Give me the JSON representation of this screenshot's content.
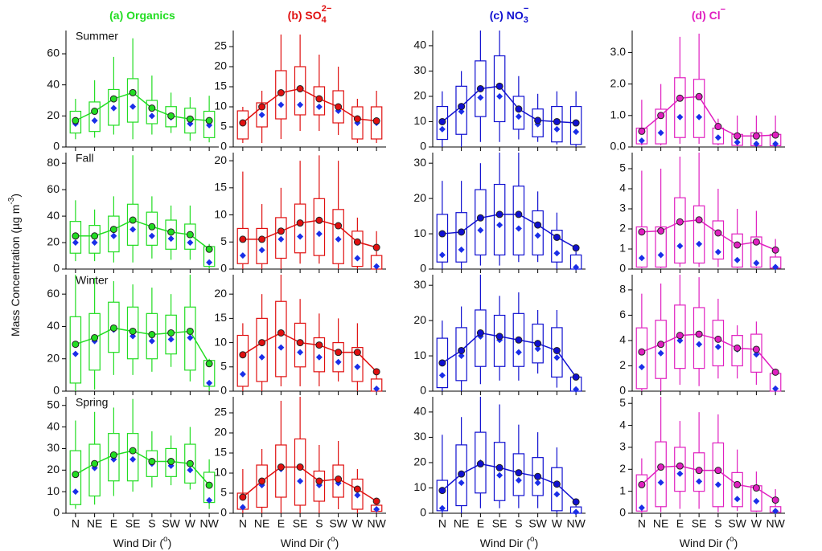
{
  "categories": [
    "N",
    "NE",
    "E",
    "SE",
    "S",
    "SW",
    "W",
    "NW"
  ],
  "x_label": {
    "text": "Wind Dir (",
    "sup": "o",
    "end": ")"
  },
  "y_label": {
    "text": "Mass Concentration (µg m",
    "sup": "-3",
    "end": ")"
  },
  "chart_data": [
    {
      "type": "box",
      "title": {
        "text": "(a) Organics"
      },
      "annotation": "Summer",
      "color": "#22dd22",
      "median_color": "#1a2ee8",
      "ylim": [
        0,
        75
      ],
      "yticks": [
        0,
        20,
        40,
        60
      ],
      "low": [
        5,
        6,
        8,
        5,
        8,
        9,
        4,
        3
      ],
      "q1": [
        9,
        10,
        14,
        16,
        15,
        13,
        9,
        6
      ],
      "median": [
        15,
        17,
        25,
        26,
        20,
        19,
        15,
        14
      ],
      "q3": [
        23,
        29,
        37,
        44,
        30,
        26,
        25,
        23
      ],
      "high": [
        31,
        43,
        58,
        70,
        46,
        35,
        32,
        33
      ],
      "mean": [
        17,
        23,
        31,
        35,
        25,
        20,
        18,
        17
      ]
    },
    {
      "type": "box",
      "title": {
        "text": "(b) SO",
        "sub": "4",
        "sup": "2−"
      },
      "color": "#e01010",
      "median_color": "#1a2ee8",
      "ylim": [
        0,
        29
      ],
      "yticks": [
        0,
        5,
        10,
        15,
        20,
        25
      ],
      "low": [
        1,
        1,
        2,
        4,
        4,
        3,
        1,
        1
      ],
      "q1": [
        2,
        5,
        7,
        8,
        8,
        6,
        2,
        2
      ],
      "median": [
        6,
        8,
        10.5,
        10.5,
        10,
        9,
        6,
        6
      ],
      "q3": [
        9,
        11,
        19,
        20,
        15,
        14,
        10,
        10
      ],
      "high": [
        10,
        14,
        28,
        28,
        23,
        20,
        12,
        14
      ],
      "mean": [
        6,
        10,
        13.5,
        14.5,
        12,
        10,
        7,
        6.5
      ]
    },
    {
      "type": "box",
      "title": {
        "text": "(c) NO",
        "sub": "3",
        "sup": "−"
      },
      "color": "#1010d0",
      "median_color": "#1a2ee8",
      "ylim": [
        0,
        46
      ],
      "yticks": [
        0,
        10,
        20,
        30,
        40
      ],
      "low": [
        0,
        0,
        2,
        2,
        3,
        2,
        1,
        0
      ],
      "q1": [
        3,
        5,
        12,
        10,
        7,
        4,
        2,
        1
      ],
      "median": [
        7,
        14,
        19.5,
        20,
        12,
        9,
        7,
        6
      ],
      "q3": [
        16,
        24,
        34,
        36,
        20,
        15,
        16,
        16
      ],
      "high": [
        22,
        30,
        46,
        46,
        28,
        21,
        22,
        22
      ],
      "mean": [
        10,
        16,
        23,
        24,
        15,
        10.5,
        10,
        9.5
      ]
    },
    {
      "type": "box",
      "title": {
        "text": "(d) Cl",
        "sup": "−"
      },
      "color": "#e020c0",
      "median_color": "#1a2ee8",
      "ylim": [
        0,
        3.7
      ],
      "yticks": [
        {
          "value": 0,
          "label": "0.0"
        },
        {
          "value": 1,
          "label": "1.0"
        },
        {
          "value": 2,
          "label": "2.0"
        },
        {
          "value": 3,
          "label": "3.0"
        }
      ],
      "low": [
        0.05,
        0.05,
        0.1,
        0.1,
        0.05,
        0.02,
        0.02,
        0.02
      ],
      "q1": [
        0.1,
        0.1,
        0.3,
        0.3,
        0.1,
        0.05,
        0.04,
        0.04
      ],
      "median": [
        0.2,
        0.45,
        0.95,
        0.95,
        0.3,
        0.15,
        0.1,
        0.1
      ],
      "q3": [
        0.6,
        1.2,
        2.2,
        2.15,
        0.6,
        0.4,
        0.45,
        0.4
      ],
      "high": [
        1.5,
        2.0,
        3.5,
        3.6,
        0.9,
        1.0,
        1.0,
        1.0
      ],
      "mean": [
        0.5,
        1.0,
        1.55,
        1.6,
        0.65,
        0.35,
        0.35,
        0.38
      ]
    },
    {
      "type": "box",
      "annotation": "Fall",
      "color": "#22dd22",
      "median_color": "#1a2ee8",
      "ylim": [
        0,
        88
      ],
      "yticks": [
        0,
        20,
        40,
        60,
        80
      ],
      "low": [
        6,
        6,
        5,
        5,
        8,
        7,
        7,
        0
      ],
      "q1": [
        12,
        12,
        13,
        18,
        18,
        15,
        15,
        2
      ],
      "median": [
        20,
        20,
        25,
        30,
        25,
        23,
        20,
        5
      ],
      "q3": [
        36,
        33,
        40,
        49,
        43,
        37,
        34,
        17
      ],
      "high": [
        52,
        45,
        55,
        86,
        55,
        48,
        48,
        19
      ],
      "mean": [
        25,
        25,
        30,
        37,
        32,
        28,
        26,
        15
      ]
    },
    {
      "type": "box",
      "color": "#e01010",
      "median_color": "#1a2ee8",
      "ylim": [
        0,
        21.5
      ],
      "yticks": [
        0,
        5,
        10,
        15,
        20
      ],
      "low": [
        0,
        0,
        0,
        1,
        1,
        0,
        0,
        0
      ],
      "q1": [
        1,
        1,
        2,
        3,
        2.5,
        1,
        0.5,
        0
      ],
      "median": [
        2.5,
        3.5,
        5.5,
        6,
        6.5,
        5.5,
        2,
        0.5
      ],
      "q3": [
        7.5,
        7.5,
        9.5,
        12,
        13,
        11,
        7,
        2.5
      ],
      "high": [
        18,
        12,
        15,
        20,
        21,
        20,
        9.5,
        7
      ],
      "mean": [
        5.5,
        5.5,
        7,
        8.5,
        9,
        8,
        5,
        4
      ]
    },
    {
      "type": "box",
      "color": "#1010d0",
      "median_color": "#1a2ee8",
      "ylim": [
        0,
        33
      ],
      "yticks": [
        0,
        10,
        20,
        30
      ],
      "low": [
        0,
        0,
        1,
        1,
        2,
        2,
        0,
        0
      ],
      "q1": [
        2,
        2,
        4,
        4,
        4,
        4,
        2,
        0
      ],
      "median": [
        4,
        5.5,
        11,
        12.5,
        11.5,
        9.5,
        4.5,
        0.5
      ],
      "q3": [
        15.5,
        16,
        22.5,
        24,
        23.5,
        16.5,
        11,
        4
      ],
      "high": [
        25,
        25,
        30,
        33,
        33,
        22,
        16,
        6
      ],
      "mean": [
        10,
        10.5,
        14.5,
        15.5,
        15.5,
        12.5,
        9,
        6
      ]
    },
    {
      "type": "box",
      "color": "#e020c0",
      "median_color": "#1a2ee8",
      "ylim": [
        0,
        5.8
      ],
      "yticks": [
        0,
        1,
        2,
        3,
        4,
        5
      ],
      "low": [
        0.05,
        0.05,
        0.1,
        0.1,
        0.1,
        0.05,
        0.05,
        0.02
      ],
      "q1": [
        0.1,
        0.1,
        0.3,
        0.3,
        0.5,
        0.1,
        0.1,
        0.05
      ],
      "median": [
        0.55,
        0.7,
        1.15,
        1.25,
        0.85,
        0.45,
        0.3,
        0.1
      ],
      "q3": [
        2.1,
        2.1,
        3.55,
        3.15,
        2.4,
        1.75,
        1.6,
        0.6
      ],
      "high": [
        4.9,
        5.0,
        5.6,
        5.8,
        4.0,
        3.0,
        2.9,
        1.5
      ],
      "mean": [
        1.85,
        1.9,
        2.35,
        2.45,
        1.8,
        1.2,
        1.35,
        0.95
      ]
    },
    {
      "type": "box",
      "annotation": "Winter",
      "color": "#22dd22",
      "median_color": "#1a2ee8",
      "ylim": [
        0,
        72
      ],
      "yticks": [
        0,
        20,
        40,
        60
      ],
      "low": [
        0,
        1,
        10,
        10,
        12,
        15,
        6,
        0
      ],
      "q1": [
        5,
        13,
        24,
        20,
        20,
        23,
        13,
        3
      ],
      "median": [
        23,
        31,
        38,
        34,
        31,
        32,
        33,
        5
      ],
      "q3": [
        46,
        48,
        55,
        52,
        48,
        47,
        52,
        19
      ],
      "high": [
        72,
        70,
        68,
        66,
        64,
        60,
        72,
        20
      ],
      "mean": [
        29,
        33,
        39,
        37,
        35,
        36,
        37,
        17
      ]
    },
    {
      "type": "box",
      "color": "#e01010",
      "median_color": "#1a2ee8",
      "ylim": [
        0,
        24
      ],
      "yticks": [
        0,
        5,
        10,
        15,
        20
      ],
      "low": [
        0,
        0,
        1,
        1,
        1,
        2,
        0,
        0
      ],
      "q1": [
        1,
        2,
        3,
        5,
        4,
        4,
        2,
        0
      ],
      "median": [
        3.5,
        7,
        9,
        8,
        7,
        6,
        5,
        0.5
      ],
      "q3": [
        11.5,
        15,
        18.5,
        14,
        11,
        10,
        9,
        2.5
      ],
      "high": [
        14,
        20,
        24,
        19,
        16,
        15,
        14,
        4.5
      ],
      "mean": [
        7.5,
        10,
        12,
        10,
        9.5,
        8,
        8,
        4
      ]
    },
    {
      "type": "box",
      "color": "#1010d0",
      "median_color": "#1a2ee8",
      "ylim": [
        0,
        33
      ],
      "yticks": [
        0,
        10,
        20,
        30
      ],
      "low": [
        0,
        0,
        2,
        3,
        3,
        5,
        1,
        0
      ],
      "q1": [
        1,
        3,
        7,
        7,
        7,
        8,
        4,
        0
      ],
      "median": [
        4.5,
        10,
        15.5,
        14.5,
        11,
        12,
        9.5,
        0.5
      ],
      "q3": [
        15,
        18,
        23,
        21.5,
        22,
        19,
        18,
        4
      ],
      "high": [
        20,
        24,
        33,
        27,
        28,
        23,
        23,
        4.5
      ],
      "mean": [
        8,
        11.5,
        16.5,
        15.5,
        14.5,
        13.5,
        11.5,
        4
      ]
    },
    {
      "type": "box",
      "color": "#e020c0",
      "median_color": "#1a2ee8",
      "ylim": [
        0,
        9.2
      ],
      "yticks": [
        0,
        2,
        4,
        6,
        8
      ],
      "low": [
        0,
        0,
        0.5,
        0.4,
        1,
        1,
        0.5,
        0
      ],
      "q1": [
        0.2,
        1,
        1.8,
        1.8,
        2,
        2,
        1.5,
        0
      ],
      "median": [
        1.9,
        3,
        4,
        3.7,
        3.5,
        3.3,
        2.9,
        0.2
      ],
      "q3": [
        5,
        5.6,
        6.8,
        6.6,
        5.6,
        4.4,
        4.5,
        1.4
      ],
      "high": [
        7.7,
        8.5,
        9.2,
        9,
        7.3,
        5.2,
        5.5,
        1.6
      ],
      "mean": [
        3.1,
        3.7,
        4.4,
        4.5,
        4.1,
        3.4,
        3.3,
        1.5
      ]
    },
    {
      "type": "box",
      "annotation": "Spring",
      "color": "#22dd22",
      "median_color": "#1a2ee8",
      "ylim": [
        0,
        54
      ],
      "yticks": [
        0,
        10,
        20,
        30,
        40,
        50
      ],
      "low": [
        2,
        4,
        8,
        10,
        12,
        13,
        11,
        2
      ],
      "q1": [
        4,
        8,
        15,
        15,
        17,
        17,
        14,
        5
      ],
      "median": [
        10,
        21,
        25,
        25,
        23,
        22,
        20,
        6
      ],
      "q3": [
        29,
        32,
        37,
        37,
        29,
        30,
        32,
        19
      ],
      "high": [
        43,
        47,
        49,
        53,
        38,
        36,
        40,
        25
      ],
      "mean": [
        18,
        23,
        27,
        29,
        24,
        24,
        23,
        13
      ]
    },
    {
      "type": "box",
      "color": "#e01010",
      "median_color": "#1a2ee8",
      "ylim": [
        0,
        29
      ],
      "yticks": [
        0,
        5,
        10,
        15,
        20,
        25
      ],
      "low": [
        0,
        0,
        0,
        0,
        0,
        1,
        0,
        0
      ],
      "q1": [
        1,
        1.5,
        4,
        2,
        3,
        4,
        1,
        0.5
      ],
      "median": [
        1.5,
        7,
        11,
        8,
        7,
        7.5,
        4.5,
        1
      ],
      "q3": [
        5,
        12,
        17,
        18.5,
        10.5,
        12,
        8.5,
        2
      ],
      "high": [
        11,
        16,
        28,
        29,
        17,
        18,
        11,
        3
      ],
      "mean": [
        4,
        8,
        11.5,
        11.5,
        8,
        8.5,
        6,
        3
      ]
    },
    {
      "type": "box",
      "color": "#1010d0",
      "median_color": "#1a2ee8",
      "ylim": [
        0,
        46
      ],
      "yticks": [
        0,
        10,
        20,
        30,
        40
      ],
      "low": [
        0,
        0,
        2,
        2,
        2,
        2,
        0,
        0
      ],
      "q1": [
        1,
        3,
        8,
        5,
        7,
        7,
        1,
        0
      ],
      "median": [
        2,
        12,
        20,
        15,
        13,
        12,
        7.5,
        0.5
      ],
      "q3": [
        13,
        27,
        32,
        28,
        23.5,
        22,
        18,
        2.5
      ],
      "high": [
        31,
        38,
        46,
        43,
        35,
        32,
        26,
        4
      ],
      "mean": [
        9,
        15.5,
        19.5,
        18,
        16,
        14.5,
        11.5,
        4.5
      ]
    },
    {
      "type": "box",
      "color": "#e020c0",
      "median_color": "#1a2ee8",
      "ylim": [
        0,
        5.3
      ],
      "yticks": [
        0,
        1,
        2,
        3,
        4,
        5
      ],
      "low": [
        0,
        0.05,
        0.2,
        0.2,
        0.05,
        0.1,
        0.05,
        0.02
      ],
      "q1": [
        0.1,
        0.3,
        1,
        1,
        0.3,
        0.3,
        0.1,
        0.05
      ],
      "median": [
        0.25,
        1.4,
        1.8,
        1.45,
        1.3,
        0.65,
        0.55,
        0.1
      ],
      "q3": [
        1.75,
        3.25,
        3,
        2.75,
        3.2,
        1.85,
        1.25,
        0.3
      ],
      "high": [
        2.5,
        5.3,
        4.2,
        4.6,
        4.5,
        2.9,
        1.9,
        1.1
      ],
      "mean": [
        1.3,
        2.1,
        2.15,
        1.95,
        1.95,
        1.3,
        1.15,
        0.6
      ]
    }
  ]
}
